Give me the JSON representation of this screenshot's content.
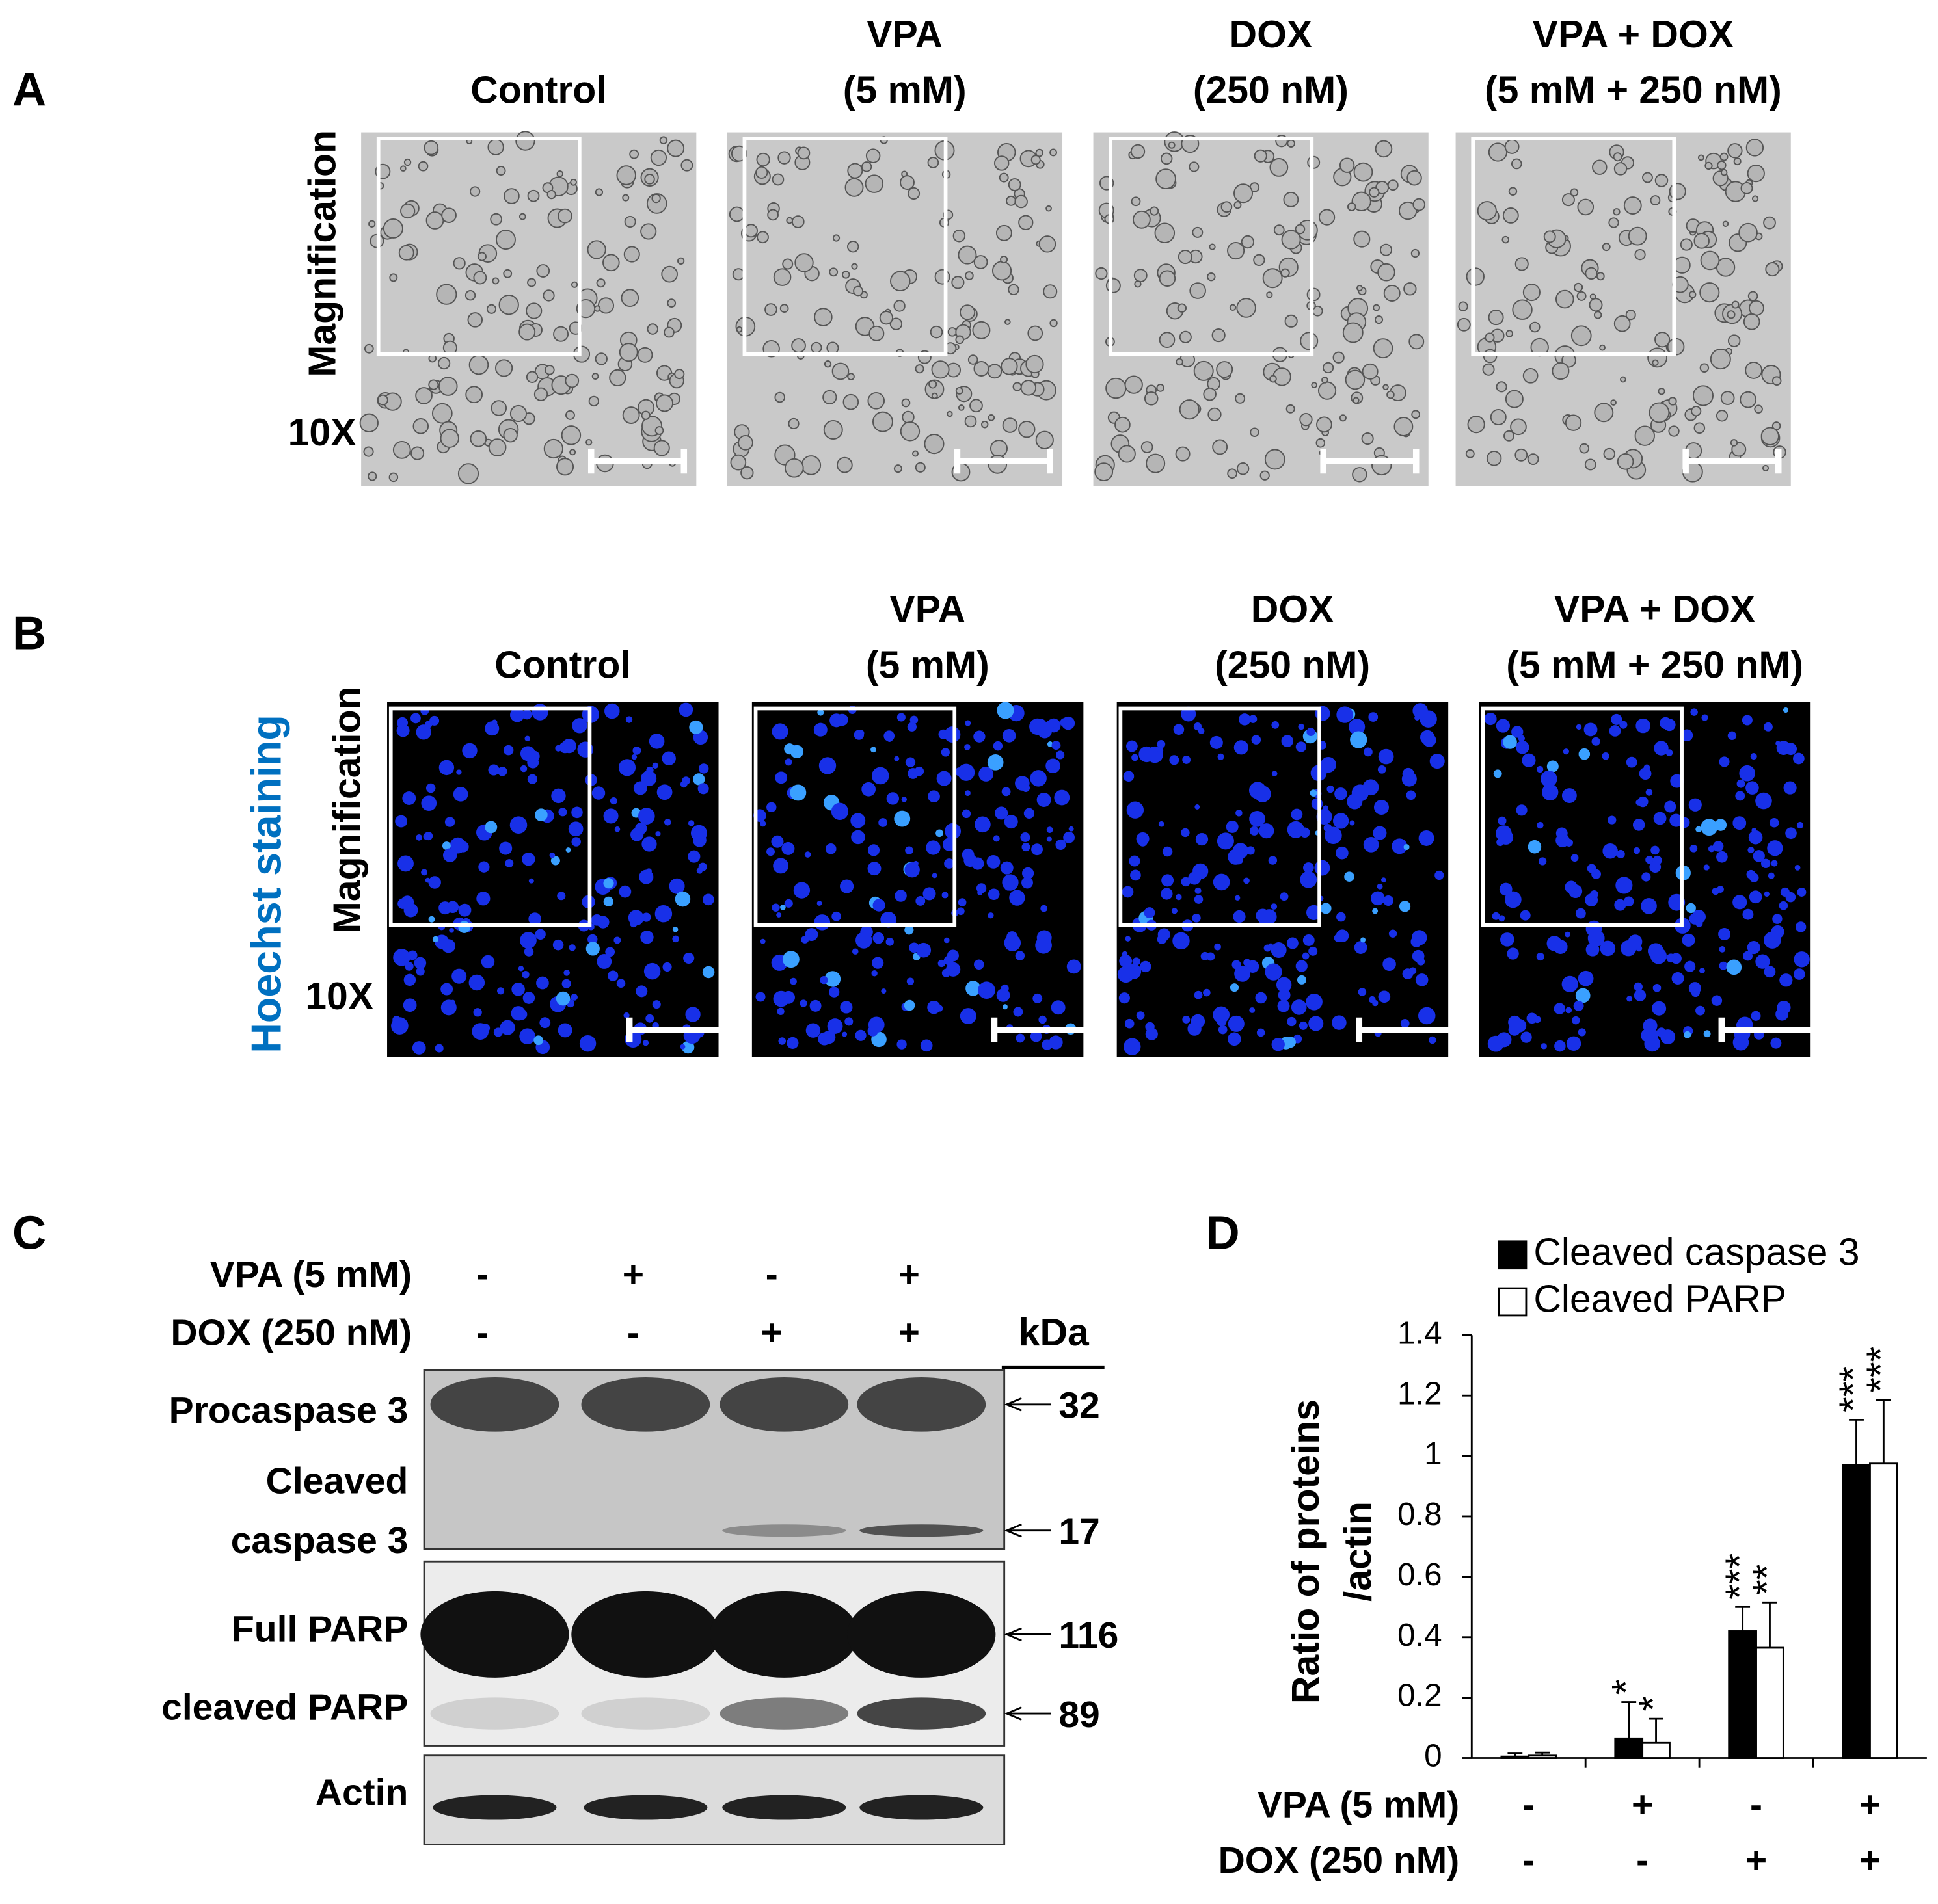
{
  "panel_a": {
    "label": "A",
    "magnification": "Magnification",
    "zoom": "10X",
    "conditions": [
      [
        "Control"
      ],
      [
        "VPA",
        "(5 mM)"
      ],
      [
        "DOX",
        "(250 nM)"
      ],
      [
        "VPA + DOX",
        "(5 mM + 250 nM)"
      ]
    ]
  },
  "panel_b": {
    "label": "B",
    "stain": "Hoechst staining",
    "magnification": "Magnification",
    "zoom": "10X",
    "conditions": [
      [
        "Control"
      ],
      [
        "VPA",
        "(5 mM)"
      ],
      [
        "DOX",
        "(250 nM)"
      ],
      [
        "VPA + DOX",
        "(5 mM + 250 nM)"
      ]
    ]
  },
  "panel_c": {
    "label": "C",
    "treatments": [
      {
        "name": "VPA (5 mM)",
        "signs": [
          "-",
          "+",
          "-",
          "+"
        ]
      },
      {
        "name": "DOX (250 nM)",
        "signs": [
          "-",
          "-",
          "+",
          "+"
        ]
      }
    ],
    "unit": "kDa",
    "bands": [
      {
        "label": [
          "Procaspase 3"
        ],
        "kda": "32"
      },
      {
        "label": [
          "Cleaved",
          "caspase 3"
        ],
        "kda": "17"
      },
      {
        "label": [
          "Full PARP"
        ],
        "kda": "116"
      },
      {
        "label": [
          "cleaved PARP"
        ],
        "kda": "89"
      },
      {
        "label": [
          "Actin"
        ]
      }
    ]
  },
  "chart_data": {
    "type": "bar",
    "label": "D",
    "ylabel": [
      "Ratio of proteins",
      "/actin"
    ],
    "categories": [
      null,
      null,
      null,
      null
    ],
    "treatments": [
      {
        "name": "VPA (5 mM)",
        "signs": [
          "-",
          "+",
          "-",
          "+"
        ]
      },
      {
        "name": "DOX (250 nM)",
        "signs": [
          "-",
          "-",
          "+",
          "+"
        ]
      }
    ],
    "series": [
      {
        "name": "Cleaved caspase 3",
        "color": "#000000",
        "values": [
          0.005,
          0.065,
          0.42,
          0.97
        ],
        "errors": [
          0.01,
          0.12,
          0.08,
          0.15
        ],
        "significance": [
          null,
          "*",
          "***",
          "***"
        ]
      },
      {
        "name": "Cleaved PARP",
        "color": "#ffffff",
        "values": [
          0.008,
          0.05,
          0.365,
          0.975
        ],
        "errors": [
          0.01,
          0.08,
          0.15,
          0.21
        ],
        "significance": [
          null,
          "*",
          "**",
          "***"
        ]
      }
    ],
    "ylim": [
      0,
      1.4
    ],
    "yticks": [
      0,
      0.2,
      0.4,
      0.6,
      0.8,
      1,
      1.2,
      1.4
    ],
    "grid": false,
    "legend": "top"
  }
}
